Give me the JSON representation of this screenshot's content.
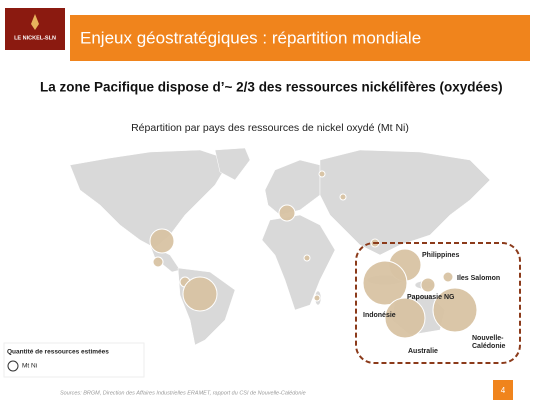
{
  "header": {
    "logo": "LE NICKEL-SLN",
    "title": "Enjeux géostratégiques : répartition mondiale"
  },
  "heading": "La zone Pacifique dispose d’~ 2/3 des ressources nickélifères (oxydées)",
  "map": {
    "title": "Répartition par pays des ressources de nickel oxydé (Mt Ni)",
    "labels": [
      "Philippines",
      "Iles Salomon",
      "Papouasie NG",
      "Indonésie",
      "Australie",
      "Nouvelle-",
      "Calédonie"
    ]
  },
  "legend": {
    "title": "Quantité de ressources estimées",
    "unit": "Mt Ni"
  },
  "footer": {
    "source": "Sources: BRGM, Direction des Affaires Industrielles ERAMET, rapport du CSI de Nouvelle-Calédonie",
    "page": "4"
  }
}
